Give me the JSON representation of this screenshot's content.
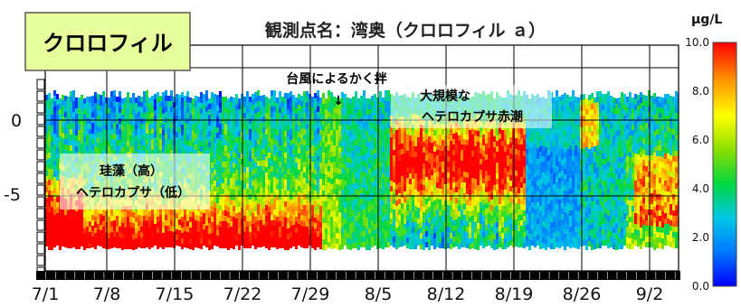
{
  "chart_data": {
    "type": "heatmap",
    "title": "観測点名：湾奥（クロロフィル ａ）",
    "badge": "クロロフィル",
    "unit": "μg/L",
    "colorbar": {
      "min": 0,
      "max": 10,
      "ticks": [
        "0.0",
        "2.0",
        "4.0",
        "6.0",
        "8.0",
        "10.0"
      ],
      "colors": [
        "#0000ff",
        "#00a0ff",
        "#00e0d0",
        "#00d040",
        "#a0e000",
        "#ffff00",
        "#ff9000",
        "#ff0000"
      ]
    },
    "y_ticks": [
      "0",
      "-5"
    ],
    "x_ticks": [
      "7/1",
      "7/8",
      "7/15",
      "7/22",
      "7/29",
      "8/5",
      "8/12",
      "8/19",
      "8/26",
      "9/2"
    ],
    "annotations": [
      {
        "id": "typhoon",
        "lines": [
          "台風によるかく拌"
        ],
        "arrow": "↓"
      },
      {
        "id": "hetero",
        "lines": [
          "大規模な",
          "ヘテロカプサ赤潮"
        ]
      },
      {
        "id": "diatom",
        "lines": [
          "珪藻（高）",
          "ヘテロカプサ（低）"
        ]
      }
    ],
    "legend": "right"
  }
}
